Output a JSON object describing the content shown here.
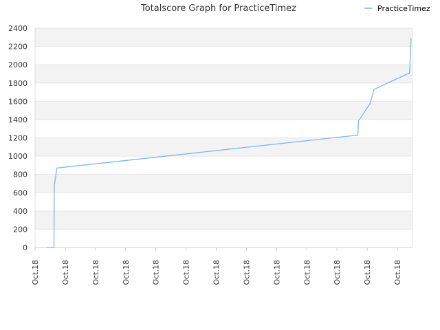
{
  "chart_data": {
    "type": "line",
    "title": "Totalscore Graph for PracticeTimez",
    "xlabel": "",
    "ylabel": "",
    "ylim": [
      0,
      2400
    ],
    "yticks": [
      0,
      200,
      400,
      600,
      800,
      1000,
      1200,
      1400,
      1600,
      1800,
      2000,
      2200,
      2400
    ],
    "xlim": [
      0,
      100
    ],
    "xticks": [
      {
        "label": "Oct.18",
        "pos": 0
      },
      {
        "label": "Oct.18",
        "pos": 8
      },
      {
        "label": "Oct.18",
        "pos": 16
      },
      {
        "label": "Oct.18",
        "pos": 24
      },
      {
        "label": "Oct.18",
        "pos": 32
      },
      {
        "label": "Oct.18",
        "pos": 40
      },
      {
        "label": "Oct.18",
        "pos": 48
      },
      {
        "label": "Oct.18",
        "pos": 56
      },
      {
        "label": "Oct.18",
        "pos": 64
      },
      {
        "label": "Oct.18",
        "pos": 72
      },
      {
        "label": "Oct.18",
        "pos": 80
      },
      {
        "label": "Oct.18",
        "pos": 88
      },
      {
        "label": "Oct.18",
        "pos": 96
      }
    ],
    "grid": true,
    "grid_band_color": "#f3f3f3",
    "legend_position": "top-right",
    "series": [
      {
        "name": "PracticeTimez",
        "color": "#7cb5ec",
        "points": [
          [
            3.0,
            0
          ],
          [
            5.0,
            0
          ],
          [
            5.1,
            680
          ],
          [
            5.4,
            760
          ],
          [
            5.8,
            870
          ],
          [
            85.5,
            1230
          ],
          [
            85.6,
            1280
          ],
          [
            85.7,
            1390
          ],
          [
            86.1,
            1410
          ],
          [
            88.8,
            1580
          ],
          [
            89.8,
            1730
          ],
          [
            99.2,
            1910
          ],
          [
            99.4,
            2060
          ],
          [
            99.6,
            2290
          ]
        ]
      }
    ]
  }
}
